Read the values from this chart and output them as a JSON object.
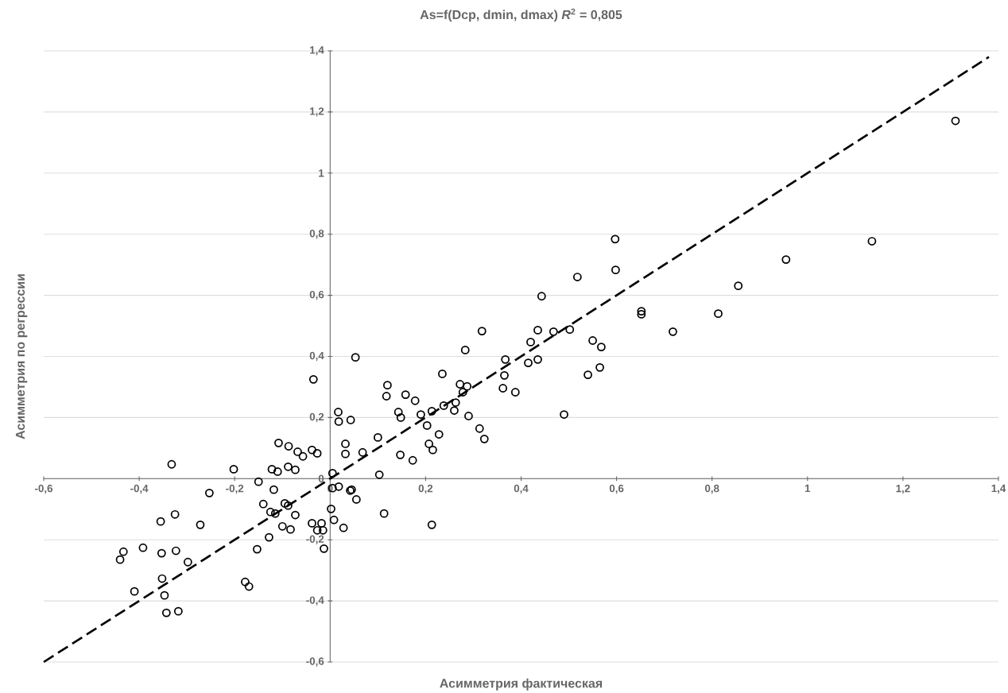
{
  "chart_data": {
    "type": "scatter",
    "title": "As=f(Dcp, dmin, dmax)   *R*$^{2}$ = 0,805",
    "xlabel": "Асимметрия фактическая",
    "ylabel": "Асимметрия по регрессии",
    "xlim": [
      -0.6,
      1.4
    ],
    "ylim": [
      -0.6,
      1.4
    ],
    "xticks": [
      {
        "value": -0.6,
        "label": "-0,6"
      },
      {
        "value": -0.4,
        "label": "-0,4"
      },
      {
        "value": -0.2,
        "label": "-0,2"
      },
      0,
      {
        "value": 0.2,
        "label": "0,2"
      },
      {
        "value": 0.4,
        "label": "0,4"
      },
      {
        "value": 0.6,
        "label": "0,6"
      },
      {
        "value": 0.8,
        "label": "0,8"
      },
      1,
      {
        "value": 1.2,
        "label": "1,2"
      },
      {
        "value": 1.4,
        "label": "1,4"
      }
    ],
    "yticks": [
      {
        "value": -0.6,
        "label": "-0,6"
      },
      {
        "value": -0.4,
        "label": "-0,4"
      },
      {
        "value": -0.2,
        "label": "-0,2"
      },
      0,
      {
        "value": 0.2,
        "label": "0,2"
      },
      {
        "value": 0.4,
        "label": "0,4"
      },
      {
        "value": 0.6,
        "label": "0,6"
      },
      {
        "value": 0.8,
        "label": "0,8"
      },
      1,
      {
        "value": 1.2,
        "label": "1,2"
      },
      {
        "value": 1.4,
        "label": "1,4"
      }
    ],
    "grid": "y",
    "marker": "circle",
    "series": [
      {
        "color": "#000000",
        "x": [
          -0.035,
          0.017,
          0.018,
          -0.108,
          -0.087,
          -0.068,
          -0.057,
          -0.038,
          -0.027,
          -0.332,
          -0.202,
          -0.122,
          -0.11,
          -0.088,
          -0.073,
          0.005,
          -0.15,
          -0.118,
          -0.253,
          0.005,
          0.018,
          -0.14,
          -0.095,
          -0.088,
          -0.125,
          -0.115,
          -0.073,
          0.002,
          0.008,
          -0.325,
          -0.355,
          -0.272,
          -0.1,
          -0.083,
          -0.038,
          -0.027,
          -0.018,
          -0.015,
          -0.128,
          -0.013,
          -0.153,
          -0.433,
          -0.44,
          -0.392,
          -0.353,
          -0.323,
          -0.298,
          -0.352,
          -0.178,
          -0.17,
          -0.41,
          -0.347,
          -0.343,
          -0.318,
          0.053,
          0.043,
          0.032,
          0.032,
          0.068,
          0.042,
          0.045,
          0.055,
          0.028,
          0.113,
          0.213,
          0.103,
          0.1,
          0.118,
          0.12,
          0.143,
          0.148,
          0.158,
          0.178,
          0.19,
          0.147,
          0.173,
          0.203,
          0.207,
          0.215,
          0.213,
          0.228,
          0.235,
          0.238,
          0.26,
          0.263,
          0.272,
          0.287,
          0.278,
          0.283,
          0.29,
          0.318,
          0.313,
          0.323,
          0.367,
          0.365,
          0.362,
          0.597,
          0.598,
          0.518,
          0.443,
          0.435,
          0.468,
          0.502,
          0.42,
          0.435,
          0.415,
          0.55,
          0.568,
          0.565,
          0.54,
          0.49,
          0.652,
          0.652,
          0.718,
          0.388,
          1.31,
          1.135,
          0.955,
          0.855,
          0.813
        ],
        "values": [
          0.325,
          0.218,
          0.187,
          0.117,
          0.106,
          0.088,
          0.073,
          0.094,
          0.083,
          0.047,
          0.031,
          0.031,
          0.023,
          0.039,
          0.029,
          0.018,
          -0.01,
          -0.036,
          -0.047,
          -0.031,
          -0.026,
          -0.083,
          -0.081,
          -0.088,
          -0.109,
          -0.114,
          -0.119,
          -0.099,
          -0.135,
          -0.117,
          -0.14,
          -0.151,
          -0.156,
          -0.166,
          -0.146,
          -0.169,
          -0.146,
          -0.169,
          -0.192,
          -0.229,
          -0.231,
          -0.239,
          -0.265,
          -0.226,
          -0.244,
          -0.236,
          -0.273,
          -0.327,
          -0.338,
          -0.353,
          -0.369,
          -0.382,
          -0.439,
          -0.434,
          0.397,
          0.192,
          0.114,
          0.081,
          0.086,
          -0.039,
          -0.036,
          -0.068,
          -0.161,
          -0.114,
          -0.151,
          0.013,
          0.135,
          0.27,
          0.306,
          0.218,
          0.2,
          0.275,
          0.255,
          0.21,
          0.078,
          0.06,
          0.174,
          0.114,
          0.094,
          0.221,
          0.145,
          0.343,
          0.239,
          0.223,
          0.249,
          0.309,
          0.302,
          0.283,
          0.421,
          0.205,
          0.483,
          0.164,
          0.13,
          0.39,
          0.338,
          0.296,
          0.784,
          0.683,
          0.66,
          0.597,
          0.486,
          0.481,
          0.488,
          0.447,
          0.39,
          0.379,
          0.452,
          0.431,
          0.364,
          0.34,
          0.21,
          0.548,
          0.538,
          0.481,
          0.283,
          1.171,
          0.777,
          0.717,
          0.631,
          0.54
        ]
      },
      {
        "type": "line",
        "color": "#000000",
        "marker": "none",
        "line_style": "dashed",
        "x": [
          -0.6,
          1.38
        ],
        "values": [
          -0.6,
          1.38
        ]
      }
    ]
  }
}
